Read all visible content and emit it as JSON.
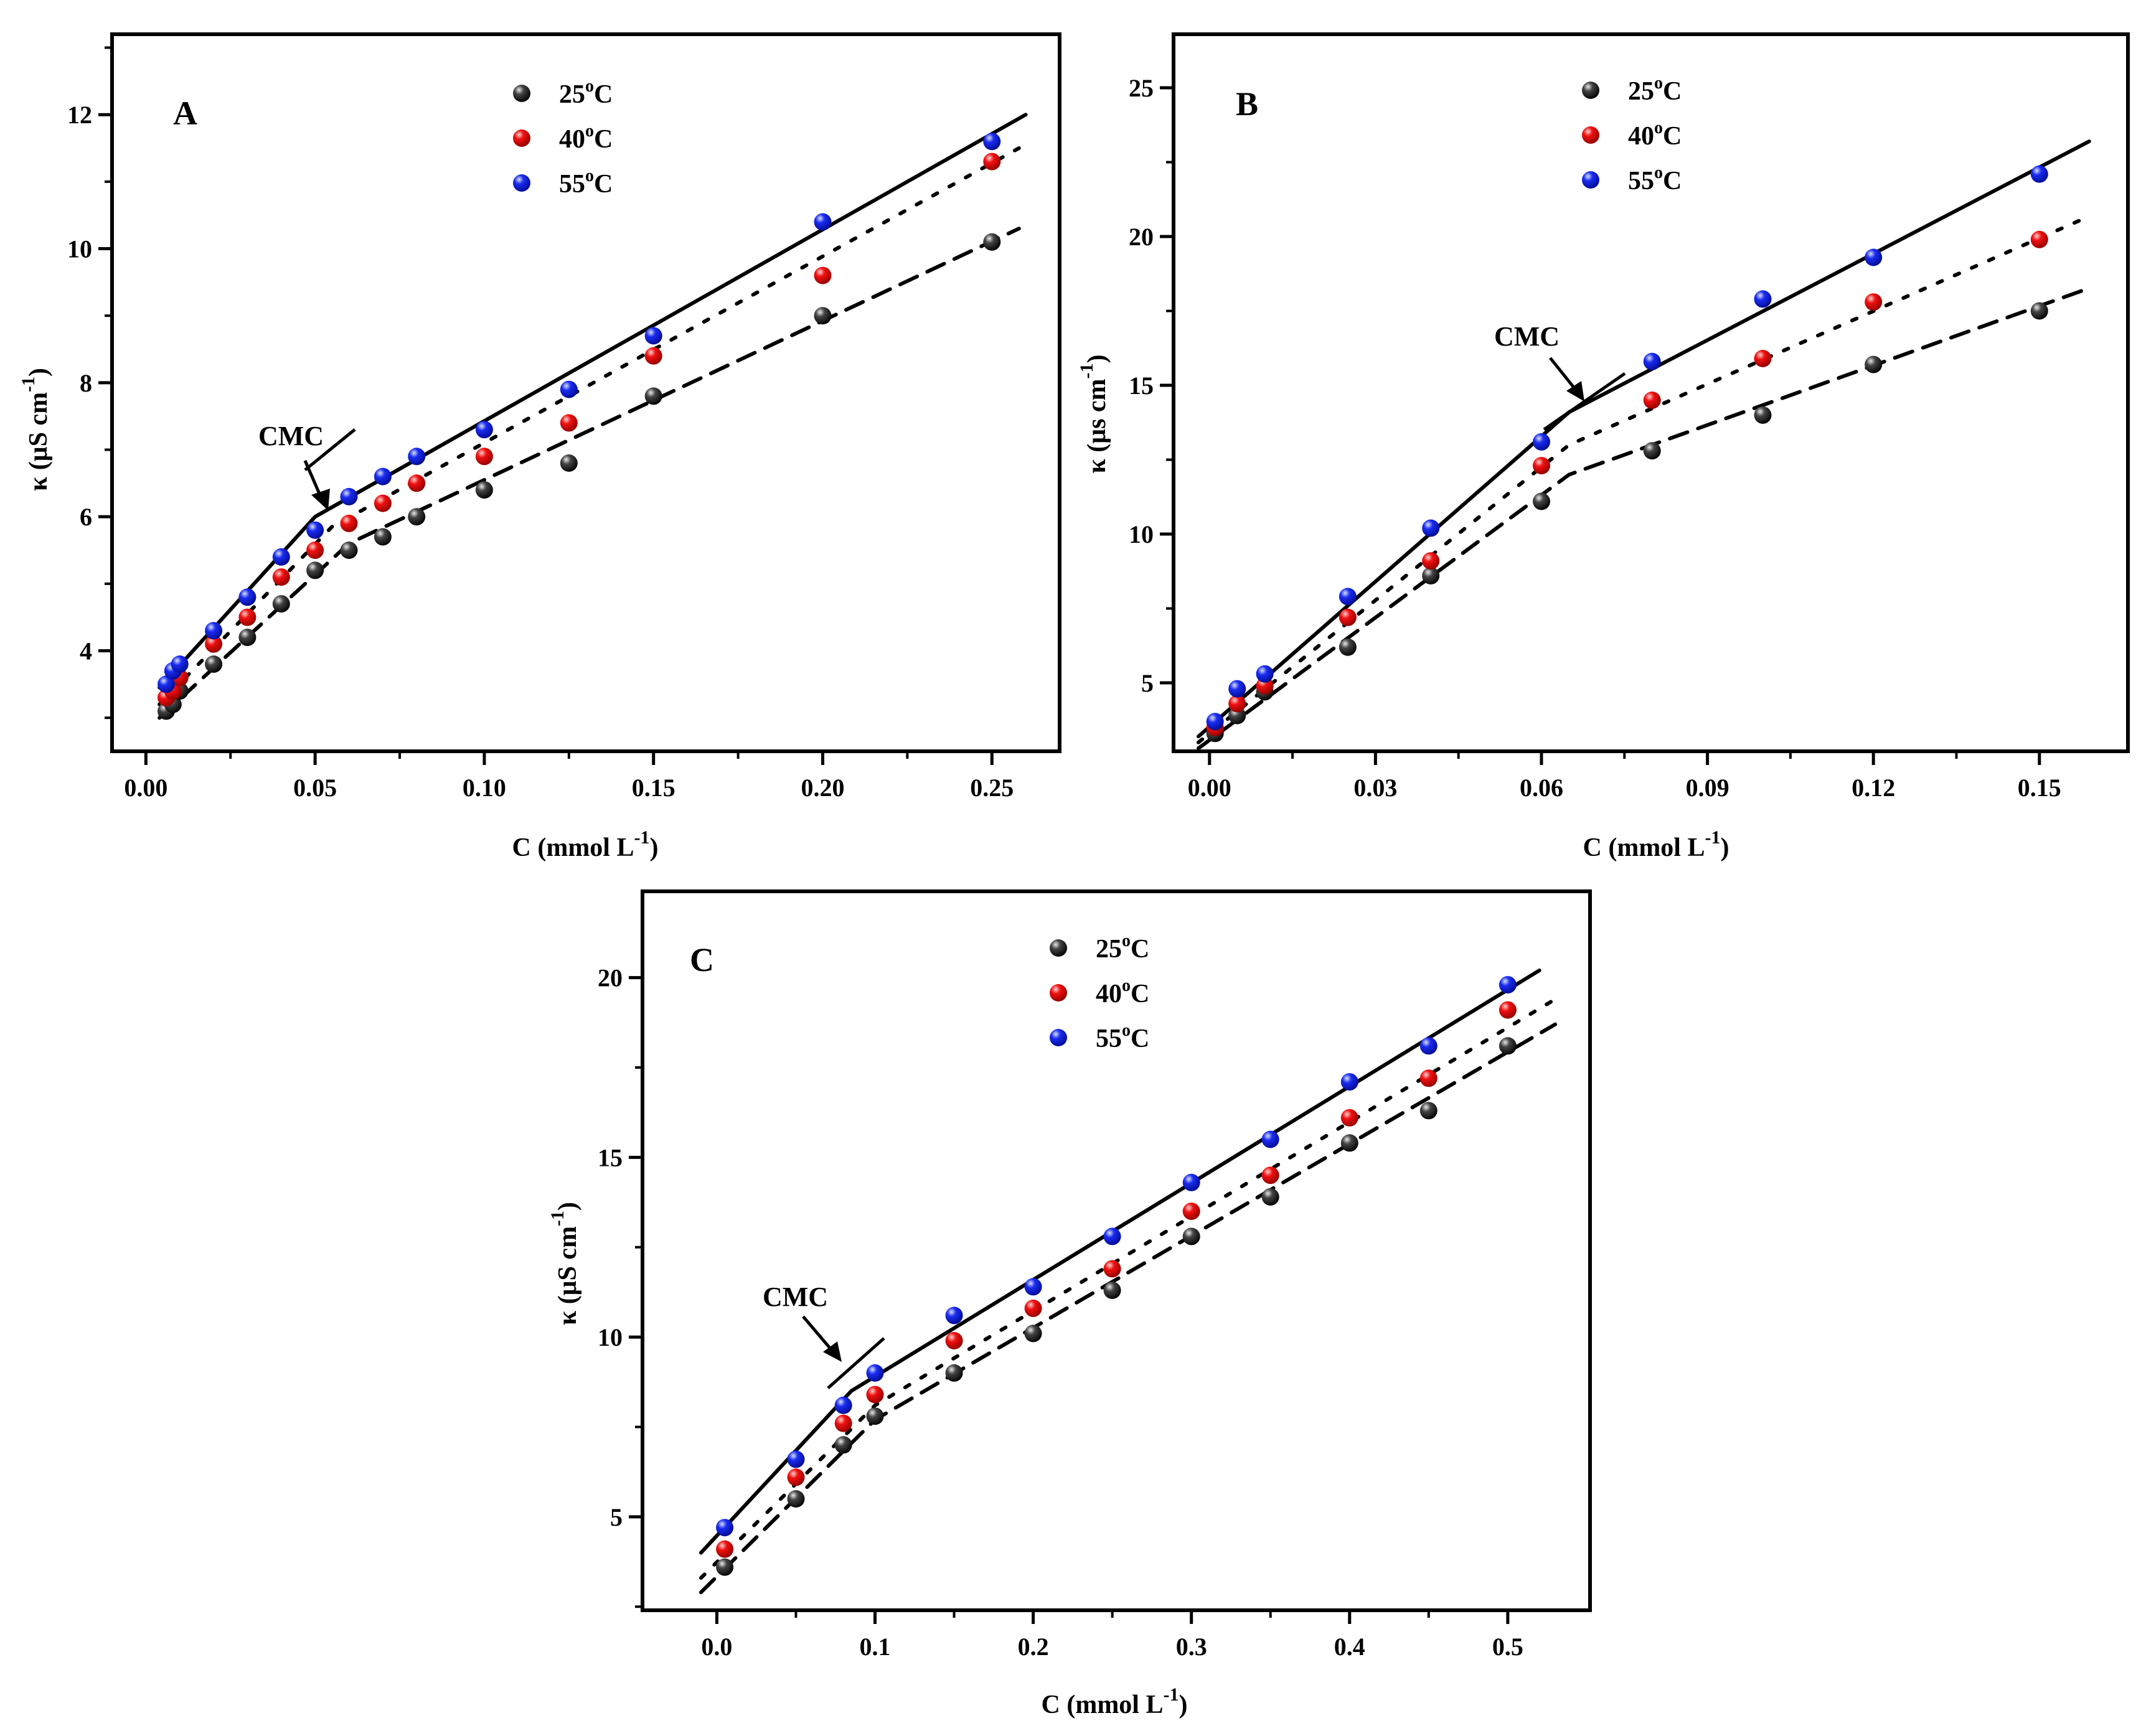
{
  "colors": {
    "series_25": "#1a1a1a",
    "series_40": "#e00000",
    "series_55": "#1020e0",
    "axis": "#000000"
  },
  "legend": {
    "temps": [
      "25",
      "40",
      "55"
    ],
    "unit": "C",
    "degree": "o"
  },
  "annotation": {
    "cmc_label": "CMC"
  },
  "axis_text": {
    "xlabel_main": "C (mmol L",
    "xlabel_sup": "-1",
    "xlabel_close": ")",
    "ylabel_main": "κ (μS cm",
    "ylabel_main_B": "κ (μs cm",
    "ylabel_sup": "-1",
    "ylabel_close": ")"
  },
  "chart_data": [
    {
      "type": "scatter",
      "title": "A",
      "xlabel": "C (mmol L-1)",
      "ylabel": "κ (μS cm-1)",
      "xlim": [
        -0.01,
        0.27
      ],
      "ylim": [
        2.5,
        13.2
      ],
      "xticks": [
        "0.00",
        "0.05",
        "0.10",
        "0.15",
        "0.20",
        "0.25"
      ],
      "xtick_values": [
        0,
        0.05,
        0.1,
        0.15,
        0.2,
        0.25
      ],
      "yticks": [
        "4",
        "6",
        "8",
        "10",
        "12"
      ],
      "ytick_values": [
        4,
        6,
        8,
        10,
        12
      ],
      "cmc": {
        "x": 0.05,
        "y": 6.0
      },
      "series": [
        {
          "name": "25°C",
          "x": [
            0.006,
            0.008,
            0.01,
            0.02,
            0.03,
            0.04,
            0.05,
            0.06,
            0.07,
            0.08,
            0.1,
            0.125,
            0.15,
            0.2,
            0.25
          ],
          "y": [
            3.1,
            3.2,
            3.4,
            3.8,
            4.2,
            4.7,
            5.2,
            5.5,
            5.7,
            6.0,
            6.4,
            6.8,
            7.8,
            9.0,
            10.1
          ],
          "fit": [
            [
              0.004,
              3.0
            ],
            [
              0.06,
              5.6
            ],
            [
              0.258,
              10.3
            ]
          ]
        },
        {
          "name": "40°C",
          "x": [
            0.006,
            0.008,
            0.01,
            0.02,
            0.03,
            0.04,
            0.05,
            0.06,
            0.07,
            0.08,
            0.1,
            0.125,
            0.15,
            0.2,
            0.25
          ],
          "y": [
            3.3,
            3.4,
            3.6,
            4.1,
            4.5,
            5.1,
            5.5,
            5.9,
            6.2,
            6.5,
            6.9,
            7.4,
            8.4,
            9.6,
            11.3
          ],
          "fit": [
            [
              0.004,
              3.2
            ],
            [
              0.055,
              5.85
            ],
            [
              0.258,
              11.5
            ]
          ]
        },
        {
          "name": "55°C",
          "x": [
            0.006,
            0.008,
            0.01,
            0.02,
            0.03,
            0.04,
            0.05,
            0.06,
            0.07,
            0.08,
            0.1,
            0.125,
            0.15,
            0.2,
            0.25
          ],
          "y": [
            3.5,
            3.7,
            3.8,
            4.3,
            4.8,
            5.4,
            5.8,
            6.3,
            6.6,
            6.9,
            7.3,
            7.9,
            8.7,
            10.4,
            11.6
          ],
          "fit": [
            [
              0.004,
              3.45
            ],
            [
              0.05,
              6.0
            ],
            [
              0.26,
              12.0
            ]
          ]
        }
      ]
    },
    {
      "type": "scatter",
      "title": "B",
      "xlabel": "C (mmol L-1)",
      "ylabel": "κ (μs cm-1)",
      "xlim": [
        -0.0065,
        0.166
      ],
      "ylim": [
        2.7,
        26.8
      ],
      "xticks": [
        "0.00",
        "0.03",
        "0.06",
        "0.09",
        "0.12",
        "0.15"
      ],
      "xtick_values": [
        0,
        0.03,
        0.06,
        0.09,
        0.12,
        0.15
      ],
      "yticks": [
        "5",
        "10",
        "15",
        "20",
        "25"
      ],
      "ytick_values": [
        5,
        10,
        15,
        20,
        25
      ],
      "cmc": {
        "x": 0.065,
        "y": 14.1
      },
      "series": [
        {
          "name": "25°C",
          "x": [
            0.001,
            0.005,
            0.01,
            0.025,
            0.04,
            0.06,
            0.08,
            0.1,
            0.12,
            0.15
          ],
          "y": [
            3.3,
            3.9,
            4.7,
            6.2,
            8.6,
            11.1,
            12.8,
            14.0,
            15.7,
            17.5
          ],
          "fit": [
            [
              -0.002,
              2.8
            ],
            [
              0.065,
              12.0
            ],
            [
              0.158,
              18.2
            ]
          ]
        },
        {
          "name": "40°C",
          "x": [
            0.001,
            0.005,
            0.01,
            0.025,
            0.04,
            0.06,
            0.08,
            0.1,
            0.12,
            0.15
          ],
          "y": [
            3.5,
            4.3,
            4.9,
            7.2,
            9.1,
            12.3,
            14.5,
            15.9,
            17.8,
            19.9
          ],
          "fit": [
            [
              -0.002,
              3.0
            ],
            [
              0.065,
              13.0
            ],
            [
              0.158,
              20.6
            ]
          ]
        },
        {
          "name": "55°C",
          "x": [
            0.001,
            0.005,
            0.01,
            0.025,
            0.04,
            0.06,
            0.08,
            0.1,
            0.12,
            0.15
          ],
          "y": [
            3.7,
            4.8,
            5.3,
            7.9,
            10.2,
            13.1,
            15.8,
            17.9,
            19.3,
            22.1
          ],
          "fit": [
            [
              -0.002,
              3.2
            ],
            [
              0.065,
              14.1
            ],
            [
              0.159,
              23.2
            ]
          ]
        }
      ]
    },
    {
      "type": "scatter",
      "title": "C",
      "xlabel": "C (mmol L-1)",
      "ylabel": "κ (μS cm-1)",
      "xlim": [
        -0.047,
        0.552
      ],
      "ylim": [
        2.4,
        22.4
      ],
      "xticks": [
        "0.0",
        "0.1",
        "0.2",
        "0.3",
        "0.4",
        "0.5"
      ],
      "xtick_values": [
        0,
        0.1,
        0.2,
        0.3,
        0.4,
        0.5
      ],
      "yticks": [
        "5",
        "10",
        "15",
        "20"
      ],
      "ytick_values": [
        5,
        10,
        15,
        20
      ],
      "cmc": {
        "x": 0.085,
        "y": 8.5
      },
      "series": [
        {
          "name": "25°C",
          "x": [
            0.005,
            0.05,
            0.08,
            0.1,
            0.15,
            0.2,
            0.25,
            0.3,
            0.35,
            0.4,
            0.45,
            0.5
          ],
          "y": [
            3.6,
            5.5,
            7.0,
            7.8,
            9.0,
            10.1,
            11.3,
            12.8,
            13.9,
            15.4,
            16.3,
            18.1
          ],
          "fit": [
            [
              -0.01,
              2.9
            ],
            [
              0.1,
              7.7
            ],
            [
              0.53,
              18.7
            ]
          ]
        },
        {
          "name": "40°C",
          "x": [
            0.005,
            0.05,
            0.08,
            0.1,
            0.15,
            0.2,
            0.25,
            0.3,
            0.35,
            0.4,
            0.45,
            0.5
          ],
          "y": [
            4.1,
            6.1,
            7.6,
            8.4,
            9.9,
            10.8,
            11.9,
            13.5,
            14.5,
            16.1,
            17.2,
            19.1
          ],
          "fit": [
            [
              -0.01,
              3.3
            ],
            [
              0.1,
              8.1
            ],
            [
              0.53,
              19.4
            ]
          ]
        },
        {
          "name": "55°C",
          "x": [
            0.005,
            0.05,
            0.08,
            0.1,
            0.15,
            0.2,
            0.25,
            0.3,
            0.35,
            0.4,
            0.45,
            0.5
          ],
          "y": [
            4.7,
            6.6,
            8.1,
            9.0,
            10.6,
            11.4,
            12.8,
            14.3,
            15.5,
            17.1,
            18.1,
            19.8
          ],
          "fit": [
            [
              -0.01,
              4.0
            ],
            [
              0.085,
              8.5
            ],
            [
              0.52,
              20.2
            ]
          ]
        }
      ]
    }
  ]
}
